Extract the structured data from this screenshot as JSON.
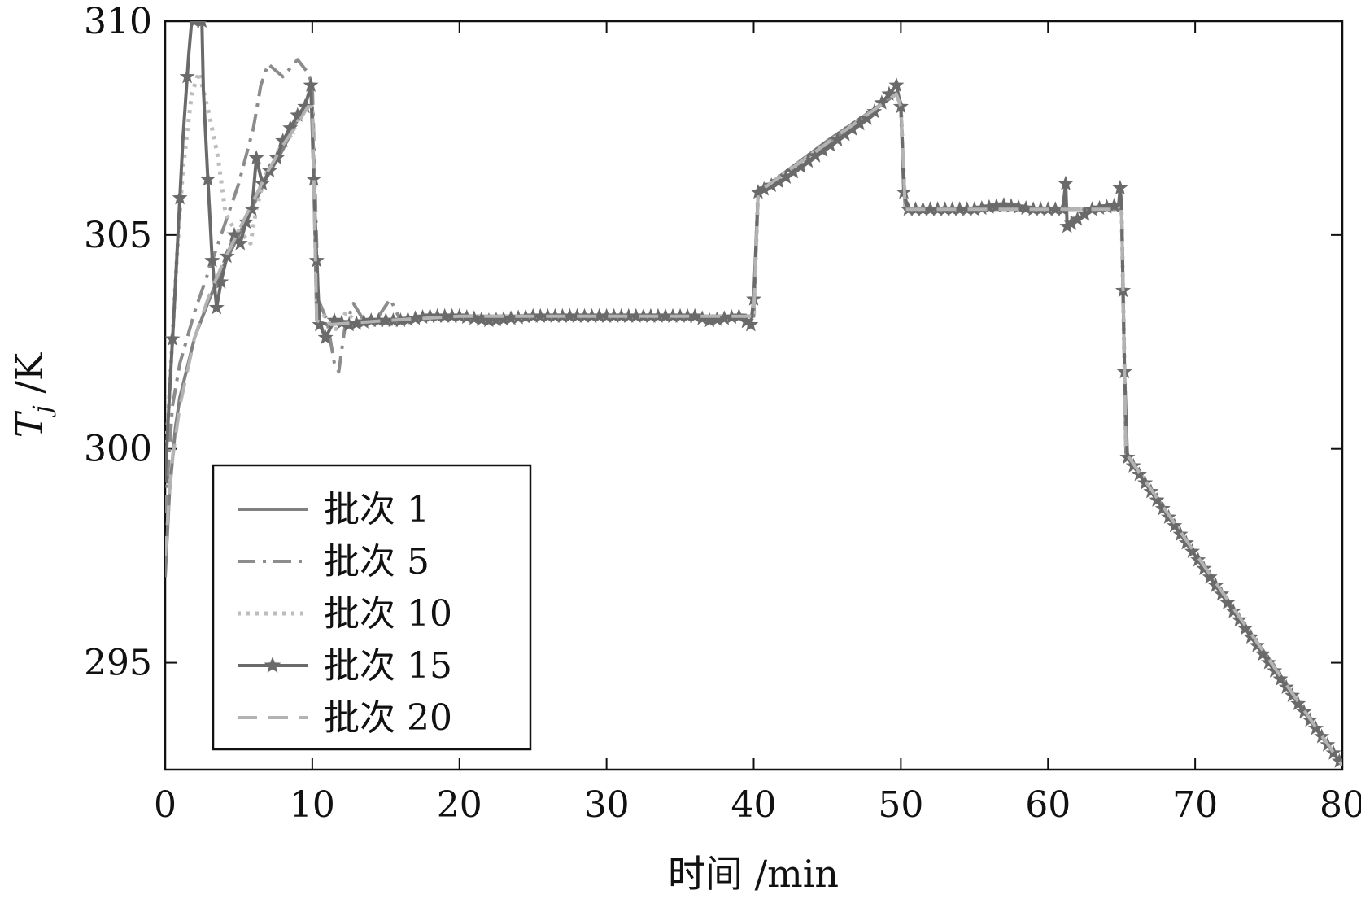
{
  "chart_data": {
    "type": "line",
    "xlabel": "时间 /min",
    "ylabel_main": "T",
    "ylabel_sub": "j",
    "ylabel_unit": " /K",
    "xlim": [
      0,
      80
    ],
    "ylim": [
      292.5,
      310
    ],
    "xticks": [
      "0",
      "10",
      "20",
      "30",
      "40",
      "50",
      "60",
      "70",
      "80"
    ],
    "yticks": [
      "295",
      "300",
      "305",
      "310"
    ],
    "grid": false,
    "legend_position": "lower-left",
    "series": [
      {
        "name": "批次 1",
        "style": "solid",
        "color": "#808080",
        "points": [
          [
            0,
            297
          ],
          [
            0.3,
            299
          ],
          [
            0.7,
            300.5
          ],
          [
            1,
            301.2
          ],
          [
            2,
            302.6
          ],
          [
            3,
            303.5
          ],
          [
            4,
            304.3
          ],
          [
            5,
            305
          ],
          [
            6,
            305.7
          ],
          [
            7,
            306.4
          ],
          [
            8,
            307
          ],
          [
            9,
            307.7
          ],
          [
            9.7,
            308
          ],
          [
            10,
            308
          ],
          [
            10.3,
            303
          ],
          [
            11,
            302.9
          ],
          [
            15,
            303
          ],
          [
            20,
            303.1
          ],
          [
            30,
            303.1
          ],
          [
            39.5,
            303.1
          ],
          [
            40,
            303.1
          ],
          [
            40.3,
            306
          ],
          [
            45,
            307.2
          ],
          [
            49.7,
            308.3
          ],
          [
            50,
            308
          ],
          [
            50.3,
            305.6
          ],
          [
            55,
            305.6
          ],
          [
            60,
            305.6
          ],
          [
            65,
            305.6
          ],
          [
            65.3,
            299.9
          ],
          [
            70,
            297.5
          ],
          [
            75,
            295.1
          ],
          [
            80,
            292.6
          ]
        ]
      },
      {
        "name": "批次 5",
        "style": "dashdot",
        "color": "#8c8c8c",
        "points": [
          [
            0,
            298.5
          ],
          [
            0.5,
            301
          ],
          [
            1,
            302
          ],
          [
            2,
            303.2
          ],
          [
            3,
            304.2
          ],
          [
            4,
            305.2
          ],
          [
            5,
            306.2
          ],
          [
            6,
            307.5
          ],
          [
            6.5,
            308.5
          ],
          [
            7,
            309
          ],
          [
            8,
            308.7
          ],
          [
            9,
            309.1
          ],
          [
            9.7,
            308.8
          ],
          [
            10,
            308.5
          ],
          [
            10.4,
            303.5
          ],
          [
            11,
            303
          ],
          [
            11.5,
            302
          ],
          [
            11.8,
            301.8
          ],
          [
            12.2,
            302.8
          ],
          [
            12.8,
            303.4
          ],
          [
            13.5,
            303
          ],
          [
            14.5,
            303.1
          ],
          [
            15.3,
            303.5
          ],
          [
            16,
            303
          ],
          [
            20,
            303.1
          ],
          [
            30,
            303.1
          ],
          [
            40,
            303.1
          ],
          [
            40.3,
            306
          ],
          [
            49.7,
            308.3
          ],
          [
            50,
            308
          ],
          [
            50.3,
            305.6
          ],
          [
            65,
            305.6
          ],
          [
            65.3,
            299.9
          ],
          [
            80,
            292.6
          ]
        ]
      },
      {
        "name": "批次 10",
        "style": "dotted",
        "color": "#bdbdbd",
        "points": [
          [
            0,
            299.5
          ],
          [
            0.4,
            302
          ],
          [
            0.8,
            304.5
          ],
          [
            1.2,
            306.5
          ],
          [
            1.8,
            308.3
          ],
          [
            2.3,
            308.8
          ],
          [
            3,
            307.8
          ],
          [
            3.6,
            306.8
          ],
          [
            4.1,
            305.5
          ],
          [
            4.6,
            305.2
          ],
          [
            5.3,
            305
          ],
          [
            5.8,
            304.8
          ],
          [
            6.2,
            305.6
          ],
          [
            6.8,
            306.4
          ],
          [
            7.5,
            306.9
          ],
          [
            8.5,
            307.3
          ],
          [
            9.2,
            307.8
          ],
          [
            9.7,
            308
          ],
          [
            10,
            308
          ],
          [
            10.3,
            303.4
          ],
          [
            11,
            303
          ],
          [
            11.6,
            302.8
          ],
          [
            12.3,
            303.2
          ],
          [
            13.2,
            302.9
          ],
          [
            14.2,
            303
          ],
          [
            15,
            302.9
          ],
          [
            20,
            303.1
          ],
          [
            30,
            303.1
          ],
          [
            40,
            303.1
          ],
          [
            40.3,
            306
          ],
          [
            49.7,
            308.3
          ],
          [
            50,
            308
          ],
          [
            50.3,
            305.6
          ],
          [
            65,
            305.6
          ],
          [
            65.3,
            299.9
          ],
          [
            80,
            292.6
          ]
        ]
      },
      {
        "name": "批次 15",
        "style": "solid-star",
        "color": "#6a6a6a",
        "points": [
          [
            0,
            299.3
          ],
          [
            0.3,
            301.3
          ],
          [
            0.6,
            303.2
          ],
          [
            0.9,
            305.2
          ],
          [
            1.2,
            307.2
          ],
          [
            1.6,
            309.2
          ],
          [
            1.8,
            310
          ],
          [
            2.2,
            310
          ],
          [
            2.5,
            310
          ],
          [
            2.6,
            308.4
          ],
          [
            2.9,
            306.3
          ],
          [
            3.2,
            304.4
          ],
          [
            3.5,
            303.3
          ],
          [
            3.8,
            303.9
          ],
          [
            4.2,
            304.5
          ],
          [
            4.7,
            305
          ],
          [
            5.1,
            304.8
          ],
          [
            5.5,
            305.3
          ],
          [
            5.9,
            305.6
          ],
          [
            6.2,
            306.8
          ],
          [
            6.6,
            306.2
          ],
          [
            7.1,
            306.5
          ],
          [
            7.6,
            306.8
          ],
          [
            8,
            307.2
          ],
          [
            8.5,
            307.5
          ],
          [
            9,
            307.8
          ],
          [
            9.5,
            308
          ],
          [
            9.9,
            308.5
          ],
          [
            10.1,
            306.3
          ],
          [
            10.3,
            304.4
          ],
          [
            10.5,
            302.9
          ],
          [
            10.9,
            302.6
          ],
          [
            11.5,
            303
          ],
          [
            12.5,
            302.9
          ],
          [
            14,
            303
          ],
          [
            16,
            303
          ],
          [
            18,
            303.1
          ],
          [
            20,
            303.1
          ],
          [
            22,
            303
          ],
          [
            25,
            303.1
          ],
          [
            28,
            303.1
          ],
          [
            31,
            303.1
          ],
          [
            34,
            303.1
          ],
          [
            36,
            303.1
          ],
          [
            37,
            303
          ],
          [
            39,
            303.1
          ],
          [
            39.8,
            302.9
          ],
          [
            40,
            303.5
          ],
          [
            40.3,
            306
          ],
          [
            42,
            306.3
          ],
          [
            44,
            306.8
          ],
          [
            46,
            307.3
          ],
          [
            48,
            307.8
          ],
          [
            49.7,
            308.5
          ],
          [
            50,
            308
          ],
          [
            50.2,
            306
          ],
          [
            50.5,
            305.6
          ],
          [
            53,
            305.6
          ],
          [
            55,
            305.6
          ],
          [
            57,
            305.7
          ],
          [
            59,
            305.6
          ],
          [
            61,
            305.6
          ],
          [
            61.2,
            306.2
          ],
          [
            61.3,
            305.2
          ],
          [
            63,
            305.6
          ],
          [
            64.8,
            305.7
          ],
          [
            64.9,
            306.1
          ],
          [
            65,
            305.7
          ],
          [
            65.1,
            303.7
          ],
          [
            65.2,
            301.8
          ],
          [
            65.4,
            299.8
          ],
          [
            66,
            299.5
          ],
          [
            70,
            297.5
          ],
          [
            75,
            295
          ],
          [
            80,
            292.6
          ]
        ],
        "star_x": [
          0,
          0.5,
          1,
          1.5,
          2,
          2.5,
          2.9,
          3.2,
          3.5,
          3.8,
          4.2,
          4.7,
          5.1,
          5.5,
          5.9,
          6.2,
          6.6,
          7.1,
          7.6,
          8,
          8.5,
          9,
          9.5,
          9.9,
          10.1,
          10.3,
          10.5,
          10.9,
          11.5,
          12,
          12.5,
          13,
          13.5,
          14,
          14.5,
          15,
          15.5,
          16,
          16.5,
          17,
          17.5,
          18,
          18.5,
          19,
          19.5,
          20,
          20.5,
          21,
          21.5,
          22,
          22.5,
          23,
          23.5,
          24,
          24.5,
          25,
          25.5,
          26,
          26.5,
          27,
          27.5,
          28,
          28.5,
          29,
          29.5,
          30,
          30.5,
          31,
          31.5,
          32,
          32.5,
          33,
          33.5,
          34,
          34.5,
          35,
          35.5,
          36,
          36.5,
          37,
          37.5,
          38,
          38.5,
          39,
          39.5,
          39.8,
          40,
          40.3,
          40.7,
          41.2,
          41.7,
          42.2,
          42.7,
          43.2,
          43.7,
          44.2,
          44.7,
          45.2,
          45.7,
          46.2,
          46.7,
          47.2,
          47.7,
          48.2,
          48.7,
          49.2,
          49.7,
          50,
          50.2,
          50.5,
          51,
          51.5,
          52,
          52.5,
          53,
          53.5,
          54,
          54.5,
          55,
          55.5,
          56,
          56.5,
          57,
          57.5,
          58,
          58.5,
          59,
          59.5,
          60,
          60.5,
          61,
          61.2,
          61.3,
          61.6,
          62,
          62.5,
          63,
          63.5,
          64,
          64.5,
          64.9,
          65.1,
          65.2,
          65.4,
          65.8,
          66.2,
          66.6,
          67,
          67.4,
          67.8,
          68.2,
          68.6,
          69,
          69.4,
          69.8,
          70.2,
          70.6,
          71,
          71.4,
          71.8,
          72.2,
          72.6,
          73,
          73.4,
          73.8,
          74.2,
          74.6,
          75,
          75.4,
          75.8,
          76.2,
          76.6,
          77,
          77.4,
          77.8,
          78.2,
          78.6,
          79,
          79.4,
          79.8
        ]
      },
      {
        "name": "批次 20",
        "style": "dashed",
        "color": "#b3b3b3",
        "points": [
          [
            0,
            297.5
          ],
          [
            0.4,
            299.5
          ],
          [
            1,
            301
          ],
          [
            2,
            302.6
          ],
          [
            3,
            303.6
          ],
          [
            4,
            304.4
          ],
          [
            5,
            305.1
          ],
          [
            6,
            305.8
          ],
          [
            7,
            306.5
          ],
          [
            8,
            307.1
          ],
          [
            9,
            307.6
          ],
          [
            9.7,
            308
          ],
          [
            10,
            308
          ],
          [
            10.3,
            303
          ],
          [
            11,
            302.9
          ],
          [
            15,
            303
          ],
          [
            20,
            303.1
          ],
          [
            30,
            303.1
          ],
          [
            40,
            303.1
          ],
          [
            40.3,
            306
          ],
          [
            49.7,
            308.3
          ],
          [
            50,
            308
          ],
          [
            50.3,
            305.6
          ],
          [
            65,
            305.6
          ],
          [
            65.3,
            299.9
          ],
          [
            80,
            292.6
          ]
        ]
      }
    ]
  }
}
